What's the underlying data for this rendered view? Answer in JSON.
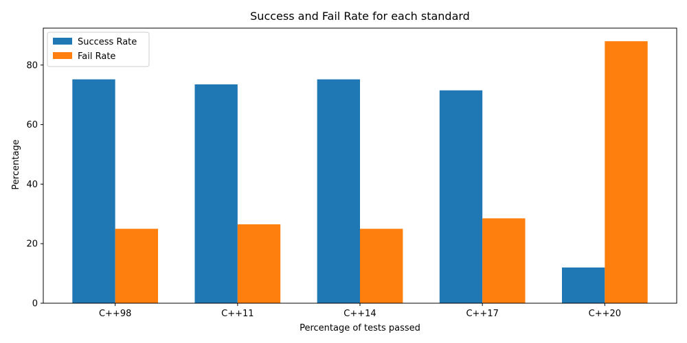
{
  "chart_data": {
    "type": "bar",
    "title": "Success and Fail Rate for each standard",
    "xlabel": "Percentage of tests passed",
    "ylabel": "Percentage",
    "categories": [
      "C++98",
      "C++11",
      "C++14",
      "C++17",
      "C++20"
    ],
    "series": [
      {
        "name": "Success Rate",
        "color": "#1f77b4",
        "values": [
          75.2,
          73.5,
          75.2,
          71.5,
          12.0
        ]
      },
      {
        "name": "Fail Rate",
        "color": "#ff7f0e",
        "values": [
          25.0,
          26.5,
          25.0,
          28.5,
          88.0
        ]
      }
    ],
    "ylim": [
      0,
      92.4
    ],
    "yticks": [
      "0",
      "20",
      "40",
      "60",
      "80"
    ],
    "grid": false,
    "legend_position": "top-left"
  }
}
